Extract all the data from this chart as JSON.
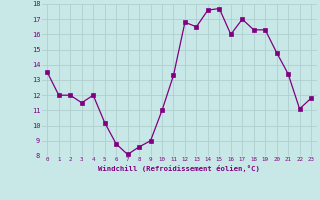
{
  "x": [
    0,
    1,
    2,
    3,
    4,
    5,
    6,
    7,
    8,
    9,
    10,
    11,
    12,
    13,
    14,
    15,
    16,
    17,
    18,
    19,
    20,
    21,
    22,
    23
  ],
  "y": [
    13.5,
    12.0,
    12.0,
    11.5,
    12.0,
    10.2,
    8.8,
    8.1,
    8.6,
    9.0,
    11.0,
    13.3,
    16.8,
    16.5,
    17.6,
    17.7,
    16.0,
    17.0,
    16.3,
    16.3,
    14.8,
    13.4,
    11.1,
    11.8
  ],
  "line_color": "#800080",
  "marker_color": "#800080",
  "bg_color": "#c8e8e8",
  "grid_color": "#b0cece",
  "xlabel": "Windchill (Refroidissement éolien,°C)",
  "xlabel_color": "#800080",
  "tick_color": "#800080",
  "ylim": [
    8,
    18
  ],
  "xlim": [
    -0.5,
    23.5
  ],
  "yticks": [
    8,
    9,
    10,
    11,
    12,
    13,
    14,
    15,
    16,
    17,
    18
  ],
  "xticks": [
    0,
    1,
    2,
    3,
    4,
    5,
    6,
    7,
    8,
    9,
    10,
    11,
    12,
    13,
    14,
    15,
    16,
    17,
    18,
    19,
    20,
    21,
    22,
    23
  ]
}
